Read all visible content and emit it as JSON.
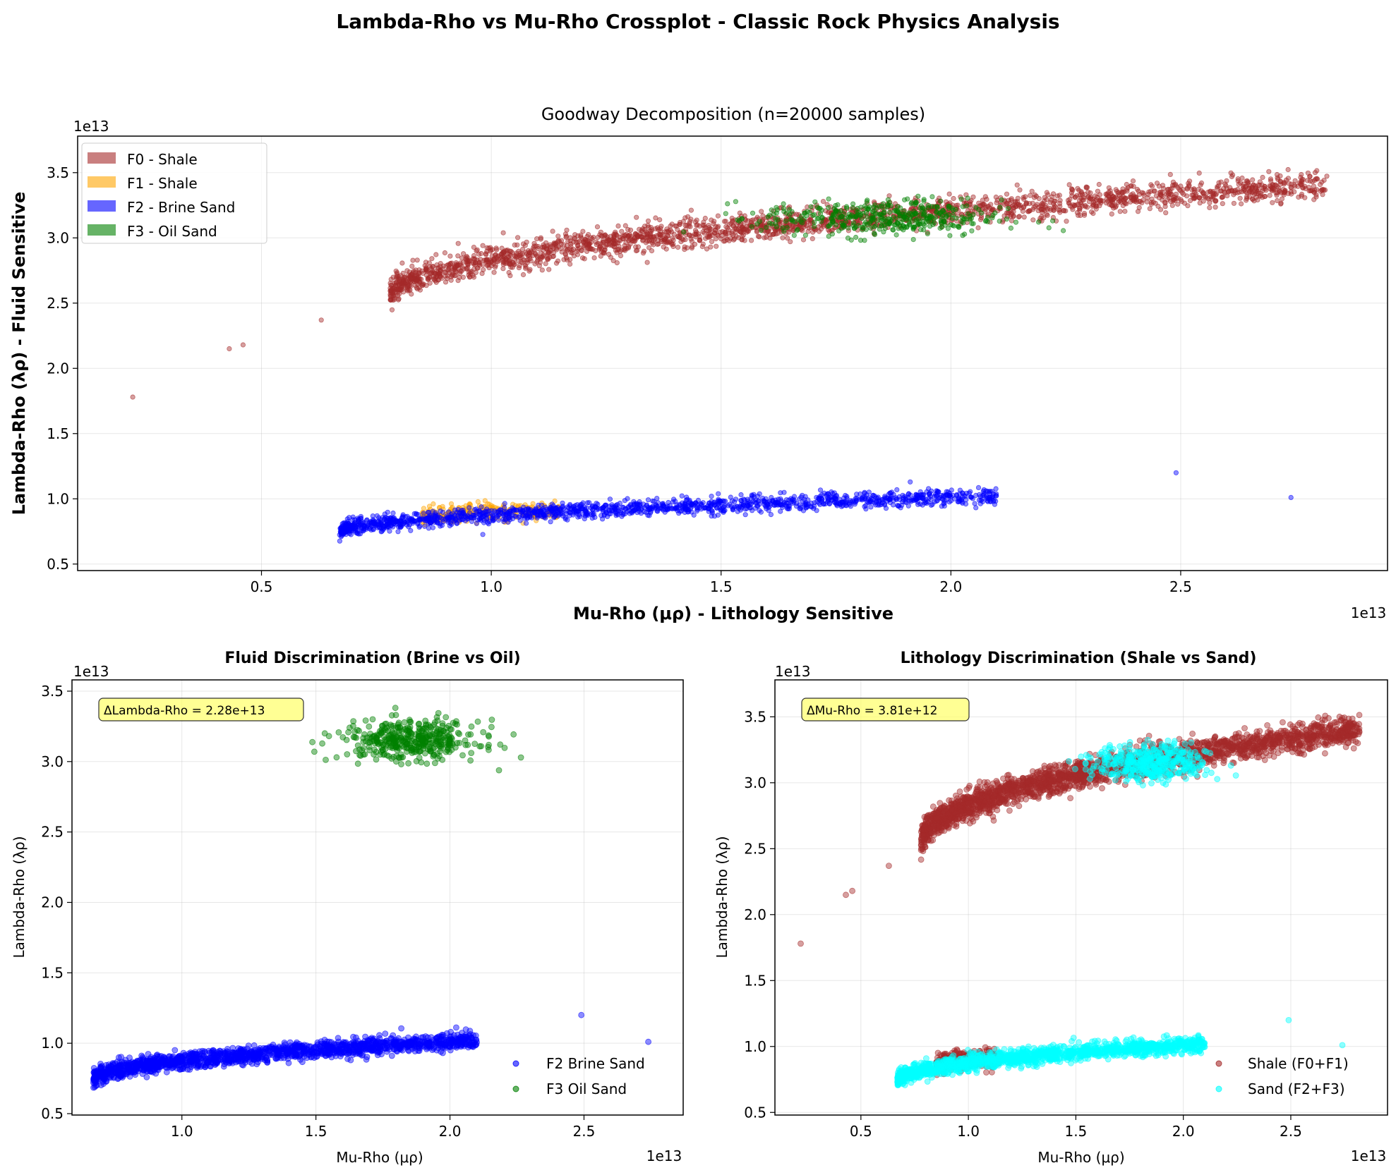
{
  "figure": {
    "suptitle": "Lambda-Rho vs Mu-Rho Crossplot - Classic Rock Physics Analysis"
  },
  "colors": {
    "F0": "#a52a2a",
    "F1": "#ffa500",
    "F2": "#0000ff",
    "F3": "#008000",
    "sand": "#00ffff",
    "annotation_bg": "#ffff66"
  },
  "chart_data": [
    {
      "id": "top",
      "type": "scatter",
      "title": "Goodway Decomposition (n=20000 samples)",
      "xlabel": "Mu-Rho (μρ) - Lithology Sensitive",
      "ylabel": "Lambda-Rho (λρ) - Fluid Sensitive",
      "x_offset_label": "1e13",
      "y_offset_label": "1e13",
      "xlim": [
        0.1,
        2.95
      ],
      "ylim": [
        0.45,
        3.78
      ],
      "xticks": [
        0.5,
        1.0,
        1.5,
        2.0,
        2.5
      ],
      "yticks": [
        0.5,
        1.0,
        1.5,
        2.0,
        2.5,
        3.0,
        3.5
      ],
      "grid": true,
      "legend_position": "upper-left",
      "legend": [
        "F0 - Shale",
        "F1 - Shale",
        "F2 - Brine Sand",
        "F3 - Oil Sand"
      ],
      "series": [
        {
          "name": "F0 - Shale",
          "color": "#a52a2a",
          "trend": {
            "x_range": [
              0.78,
              2.82
            ],
            "y_at_start": 2.55,
            "y_at_end": 3.4,
            "spread": 0.09
          },
          "outliers": [
            [
              0.22,
              1.78
            ],
            [
              0.43,
              2.15
            ],
            [
              0.46,
              2.18
            ],
            [
              0.63,
              2.37
            ]
          ]
        },
        {
          "name": "F1 - Shale",
          "color": "#ffa500",
          "trend": {
            "x_range": [
              0.85,
              1.15
            ],
            "y_at_start": 0.86,
            "y_at_end": 0.92,
            "spread": 0.06
          }
        },
        {
          "name": "F2 - Brine Sand",
          "color": "#0000ff",
          "trend": {
            "x_range": [
              0.67,
              2.1
            ],
            "y_at_start": 0.74,
            "y_at_end": 1.02,
            "spread": 0.05
          },
          "outliers": [
            [
              2.49,
              1.2
            ],
            [
              2.74,
              1.01
            ]
          ]
        },
        {
          "name": "F3 - Oil Sand",
          "color": "#008000",
          "cluster": {
            "x_center": 1.85,
            "y_center": 3.15,
            "x_spread": 0.13,
            "y_spread": 0.07
          }
        }
      ]
    },
    {
      "id": "fluid",
      "type": "scatter",
      "title": "Fluid Discrimination (Brine vs Oil)",
      "xlabel": "Mu-Rho (μρ)",
      "ylabel": "Lambda-Rho (λρ)",
      "x_offset_label": "1e13",
      "y_offset_label": "1e13",
      "xlim": [
        0.59,
        2.87
      ],
      "ylim": [
        0.49,
        3.58
      ],
      "xticks": [
        1.0,
        1.5,
        2.0,
        2.5
      ],
      "yticks": [
        0.5,
        1.0,
        1.5,
        2.0,
        2.5,
        3.0,
        3.5
      ],
      "grid": true,
      "annotation": "ΔLambda-Rho = 2.28e+13",
      "legend_position": "lower-right",
      "legend": [
        "F2 Brine Sand",
        "F3 Oil Sand"
      ],
      "series": [
        {
          "name": "F2 Brine Sand",
          "color": "#0000ff",
          "trend": {
            "x_range": [
              0.67,
              2.1
            ],
            "y_at_start": 0.74,
            "y_at_end": 1.02,
            "spread": 0.05
          },
          "outliers": [
            [
              2.49,
              1.2
            ],
            [
              2.74,
              1.01
            ]
          ]
        },
        {
          "name": "F3 Oil Sand",
          "color": "#008000",
          "cluster": {
            "x_center": 1.85,
            "y_center": 3.15,
            "x_spread": 0.13,
            "y_spread": 0.07
          }
        }
      ]
    },
    {
      "id": "litho",
      "type": "scatter",
      "title": "Lithology Discrimination (Shale vs Sand)",
      "xlabel": "Mu-Rho (μρ)",
      "ylabel": "Lambda-Rho (λρ)",
      "x_offset_label": "1e13",
      "y_offset_label": "1e13",
      "xlim": [
        0.1,
        2.95
      ],
      "ylim": [
        0.48,
        3.78
      ],
      "xticks": [
        0.5,
        1.0,
        1.5,
        2.0,
        2.5
      ],
      "yticks": [
        0.5,
        1.0,
        1.5,
        2.0,
        2.5,
        3.0,
        3.5
      ],
      "grid": true,
      "annotation": "ΔMu-Rho = 3.81e+12",
      "legend_position": "lower-right",
      "legend": [
        "Shale (F0+F1)",
        "Sand (F2+F3)"
      ],
      "series": [
        {
          "name": "Shale (F0+F1)",
          "color": "#a52a2a",
          "trend": {
            "x_range": [
              0.78,
              2.82
            ],
            "y_at_start": 2.55,
            "y_at_end": 3.4,
            "spread": 0.09
          },
          "outliers": [
            [
              0.22,
              1.78
            ],
            [
              0.43,
              2.15
            ],
            [
              0.46,
              2.18
            ],
            [
              0.63,
              2.37
            ]
          ],
          "extra_trend": {
            "x_range": [
              0.85,
              1.15
            ],
            "y_at_start": 0.86,
            "y_at_end": 0.92,
            "spread": 0.06
          }
        },
        {
          "name": "Sand (F2+F3)",
          "color": "#00ffff",
          "trend": {
            "x_range": [
              0.67,
              2.1
            ],
            "y_at_start": 0.74,
            "y_at_end": 1.02,
            "spread": 0.05
          },
          "outliers": [
            [
              2.49,
              1.2
            ],
            [
              2.74,
              1.01
            ]
          ],
          "cluster": {
            "x_center": 1.85,
            "y_center": 3.15,
            "x_spread": 0.13,
            "y_spread": 0.07
          }
        }
      ]
    }
  ]
}
